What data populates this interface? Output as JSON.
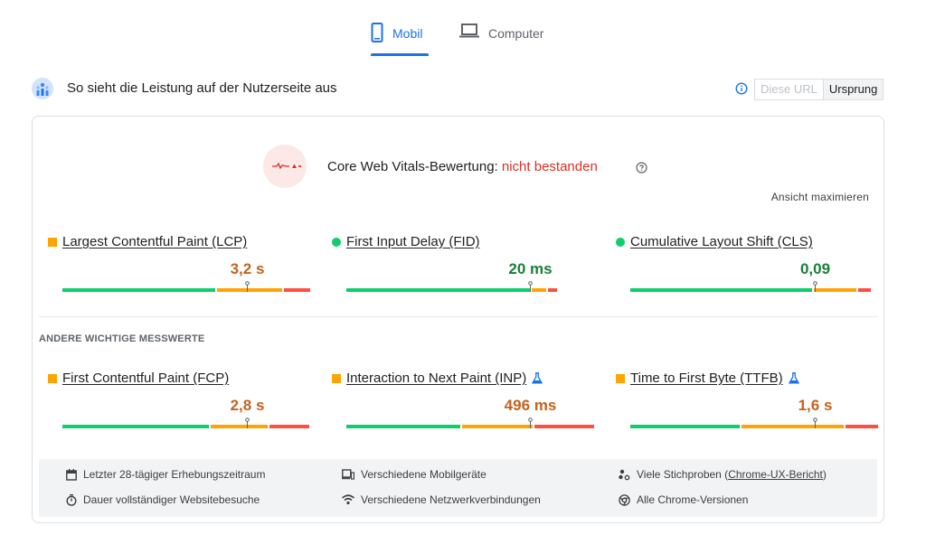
{
  "tabs": [
    {
      "label": "Mobil",
      "icon": "smartphone-icon",
      "selected": true
    },
    {
      "label": "Computer",
      "icon": "laptop-icon",
      "selected": false
    }
  ],
  "header": {
    "title": "So sieht die Leistung auf der Nutzerseite aus",
    "toggle": {
      "diese_url": "Diese URL",
      "ursprung": "Ursprung",
      "selected": "Ursprung"
    }
  },
  "cwv": {
    "label": "Core Web Vitals-Bewertung: ",
    "status": "nicht bestanden",
    "expand": "Ansicht maximieren"
  },
  "core_metrics": [
    {
      "name": "Largest Contentful Paint (LCP)",
      "value": "3,2 s",
      "marker": "square",
      "status": "orange",
      "distribution": [
        0.62,
        0.265,
        0.105
      ],
      "pin": 0.745
    },
    {
      "name": "First Input Delay (FID)",
      "value": "20 ms",
      "marker": "circle",
      "status": "green",
      "distribution": [
        0.74,
        0.06,
        0.035
      ],
      "pin": 0.74
    },
    {
      "name": "Cumulative Layout Shift (CLS)",
      "value": "0,09",
      "marker": "circle",
      "status": "green",
      "distribution": [
        0.735,
        0.17,
        0.05
      ],
      "pin": 0.745
    }
  ],
  "other_label": "ANDERE WICHTIGE MESSWERTE",
  "other_metrics": [
    {
      "name": "First Contentful Paint (FCP)",
      "value": "2,8 s",
      "marker": "square",
      "status": "orange",
      "experimental": false,
      "distribution": [
        0.59,
        0.23,
        0.16
      ],
      "pin": 0.745
    },
    {
      "name": "Interaction to Next Paint (INP)",
      "value": "496 ms",
      "marker": "square",
      "status": "orange",
      "experimental": true,
      "distribution": [
        0.46,
        0.29,
        0.24
      ],
      "pin": 0.74
    },
    {
      "name": "Time to First Byte (TTFB)",
      "value": "1,6 s",
      "marker": "square",
      "status": "orange",
      "experimental": true,
      "distribution": [
        0.445,
        0.415,
        0.13
      ],
      "pin": 0.745
    }
  ],
  "footer": {
    "items": [
      {
        "icon": "calendar-icon",
        "text": "Letzter 28-tägiger Erhebungszeitraum"
      },
      {
        "icon": "devices-icon",
        "text": "Verschiedene Mobilgeräte"
      },
      {
        "icon": "people-icon",
        "text": "Viele Stichproben (",
        "link": "Chrome-UX-Bericht",
        "suffix": ")"
      },
      {
        "icon": "timer-icon",
        "text": "Dauer vollständiger Websitebesuche"
      },
      {
        "icon": "wifi-icon",
        "text": "Verschiedene Netzwerkverbindungen"
      },
      {
        "icon": "chrome-icon",
        "text": "Alle Chrome-Versionen"
      }
    ]
  },
  "colors": {
    "accent": "#1a73e8",
    "good": "#0cce6b",
    "average": "#ffa400",
    "poor": "#ff4e42",
    "fail_text": "#d93025"
  }
}
